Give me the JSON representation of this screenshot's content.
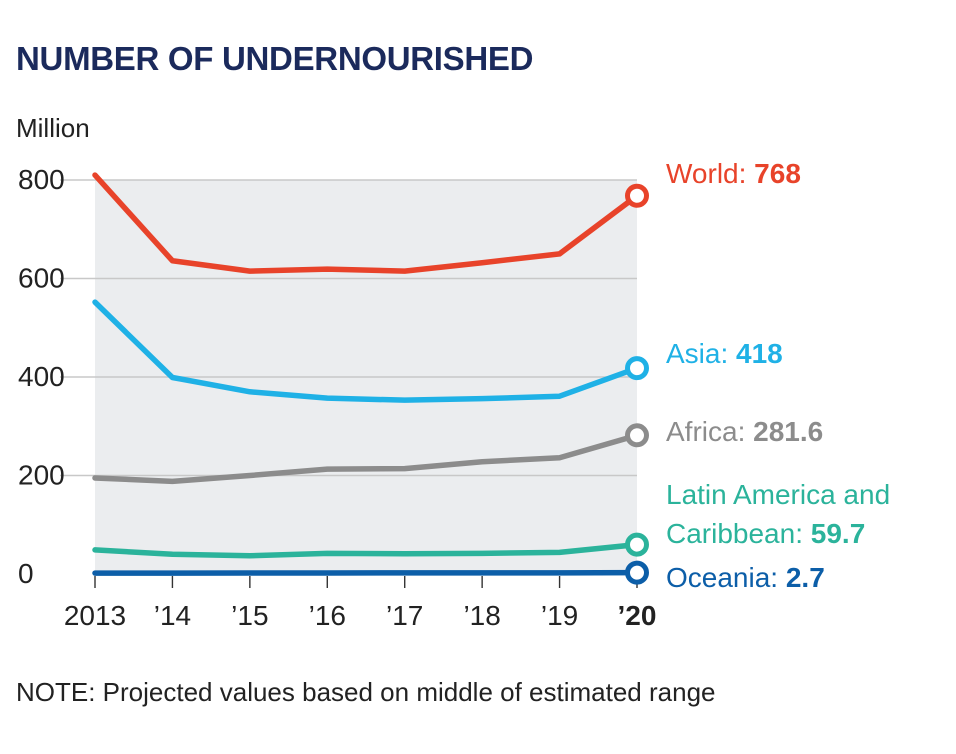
{
  "title": "NUMBER OF UNDERNOURISHED",
  "note": "NOTE: Projected values based on middle of estimated range",
  "chart_data": {
    "type": "line",
    "title": "NUMBER OF UNDERNOURISHED",
    "ylabel": "Million",
    "xlabel": "",
    "ylim": [
      0,
      800
    ],
    "yticks": [
      0,
      200,
      400,
      600,
      800
    ],
    "x_labels": [
      "2013",
      "’14",
      "’15",
      "’16",
      "’17",
      "’18",
      "’19",
      "’20"
    ],
    "x": [
      2013,
      2014,
      2015,
      2016,
      2017,
      2018,
      2019,
      2020
    ],
    "grid": true,
    "series": [
      {
        "name": "World",
        "label_name": "World: ",
        "label_value": "768",
        "color": "#e8432a",
        "values": [
          810,
          636,
          615,
          619,
          615,
          632,
          650,
          768
        ]
      },
      {
        "name": "Asia",
        "label_name": "Asia: ",
        "label_value": "418",
        "color": "#1fb1e6",
        "values": [
          552,
          399,
          370,
          357,
          353,
          356,
          361,
          418
        ]
      },
      {
        "name": "Africa",
        "label_name": "Africa: ",
        "label_value": "281.6",
        "color": "#8c8c8c",
        "values": [
          195,
          188,
          200,
          213,
          214,
          228,
          236,
          281.6
        ]
      },
      {
        "name": "Latin America and Caribbean",
        "label_name_lines": [
          "Latin America and",
          "Caribbean: "
        ],
        "label_value": "59.7",
        "color": "#2bb39b",
        "values": [
          49,
          40,
          37,
          42,
          41,
          42,
          44,
          59.7
        ]
      },
      {
        "name": "Oceania",
        "label_name": "Oceania: ",
        "label_value": "2.7",
        "color": "#0c5ea8",
        "values": [
          1.8,
          1.9,
          2.0,
          2.1,
          2.2,
          2.3,
          2.4,
          2.7
        ]
      }
    ]
  }
}
